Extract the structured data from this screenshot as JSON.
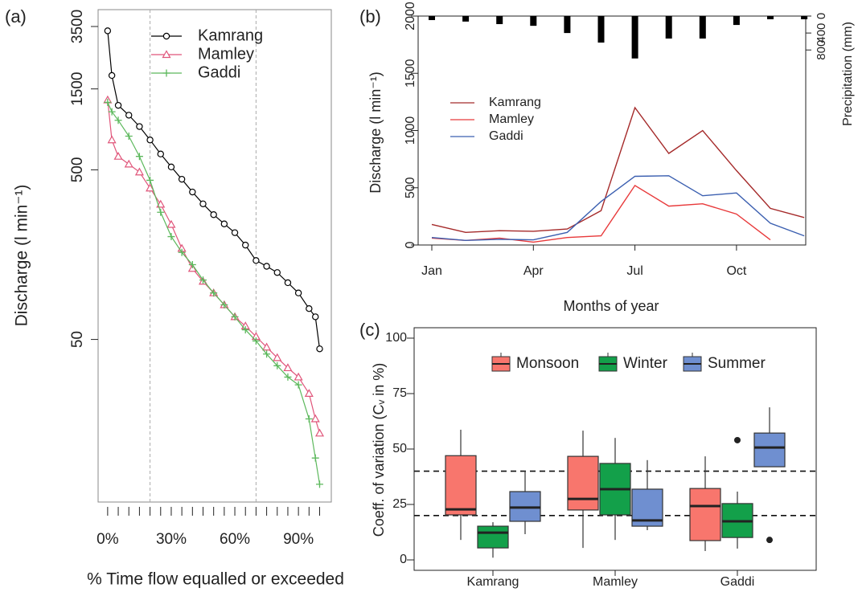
{
  "chart_data": [
    {
      "type": "line",
      "panel_label": "(a)",
      "xlabel": "% Time flow equalled or exceeded",
      "ylabel": "Discharge (l min⁻¹)",
      "ylog": true,
      "ylim": [
        5.5,
        4400
      ],
      "yticks": [
        50,
        500,
        1500,
        3500
      ],
      "xlim": [
        -4.5,
        105.5
      ],
      "xticks": [
        {
          "value": 0,
          "label": "0%"
        },
        {
          "value": 30,
          "label": "30%"
        },
        {
          "value": 60,
          "label": "60%"
        },
        {
          "value": 90,
          "label": "90%"
        }
      ],
      "xminorticks": [
        0,
        5,
        10,
        15,
        20,
        25,
        30,
        35,
        40,
        45,
        50,
        55,
        60,
        65,
        70,
        75,
        80,
        85,
        90,
        95,
        100
      ],
      "vlines": [
        20,
        70
      ],
      "x": [
        0,
        2,
        5,
        10,
        15,
        20,
        25,
        30,
        35,
        40,
        45,
        50,
        55,
        60,
        65,
        70,
        75,
        80,
        85,
        90,
        95,
        98,
        100
      ],
      "series": [
        {
          "name": "Kamrang",
          "color": "#000000",
          "marker": "circle",
          "values": [
            3300,
            1800,
            1200,
            1050,
            900,
            750,
            620,
            520,
            440,
            370,
            315,
            272,
            240,
            213,
            180,
            146,
            135,
            124,
            108,
            94,
            76,
            68,
            44
          ]
        },
        {
          "name": "Mamley",
          "color": "#e0557a",
          "marker": "triangle",
          "values": [
            1290,
            750,
            600,
            540,
            485,
            390,
            313,
            238,
            172,
            131,
            110,
            94,
            80,
            68,
            60,
            52,
            45,
            39,
            34,
            30,
            24,
            17,
            14
          ]
        },
        {
          "name": "Gaddi",
          "color": "#5cb85c",
          "marker": "plus",
          "values": [
            1250,
            1100,
            980,
            790,
            600,
            434,
            281,
            202,
            163,
            138,
            112,
            94,
            80,
            68,
            57,
            49,
            41,
            35,
            30,
            27,
            17,
            10,
            7
          ]
        }
      ]
    },
    {
      "type": "line",
      "panel_label": "(b)",
      "xlabel": "Months of year",
      "ylabel": "Discharge (l min⁻¹)",
      "y2label": "Precipitation (mm)",
      "ylim": [
        0,
        2000
      ],
      "yticks": [
        0,
        500,
        1000,
        1500,
        2000
      ],
      "y2lim": [
        0,
        5400
      ],
      "y2ticks": [
        0,
        400,
        800
      ],
      "categories": [
        "Jan",
        null,
        null,
        "Apr",
        null,
        null,
        "Jul",
        null,
        null,
        "Oct",
        null,
        null
      ],
      "series": [
        {
          "name": "Kamrang",
          "color": "#a52a2a",
          "values": [
            180,
            110,
            125,
            120,
            140,
            300,
            1200,
            800,
            1000,
            650,
            320,
            240
          ]
        },
        {
          "name": "Mamley",
          "color": "#e8393a",
          "values": [
            60,
            40,
            60,
            25,
            65,
            80,
            520,
            340,
            360,
            270,
            45,
            null
          ]
        },
        {
          "name": "Gaddi",
          "color": "#3b5fb0",
          "values": [
            65,
            40,
            50,
            45,
            110,
            380,
            600,
            605,
            430,
            455,
            190,
            80
          ]
        }
      ],
      "precipitation": {
        "axis": "y2",
        "color": "#000000",
        "values": [
          95,
          130,
          190,
          230,
          400,
          625,
          1000,
          530,
          530,
          210,
          75,
          75
        ]
      }
    },
    {
      "type": "box",
      "panel_label": "(c)",
      "ylabel": "Coeff. of variation (Cᵥ in %)",
      "ylim": [
        -4.7,
        104.7
      ],
      "yticks": [
        0,
        25,
        50,
        75,
        100
      ],
      "hlines": [
        20,
        40
      ],
      "categories": [
        "Kamrang",
        "Mamley",
        "Gaddi"
      ],
      "series": [
        {
          "name": "Monsoon",
          "color": "#f8766d",
          "values": [
            [
              9,
              20.3,
              22.8,
              47,
              58.7
            ],
            [
              5.4,
              22.5,
              27.5,
              46.7,
              58.3
            ],
            [
              4,
              8.7,
              24.3,
              32.2,
              46.7
            ]
          ],
          "outliers": [
            [],
            [],
            []
          ]
        },
        {
          "name": "Winter",
          "color": "#13a04a",
          "values": [
            [
              1,
              5.4,
              12.3,
              15.2,
              17
            ],
            [
              9,
              20.3,
              31.9,
              43.5,
              55
            ],
            [
              5.1,
              10.1,
              17.4,
              25.4,
              30.8
            ]
          ],
          "outliers": [
            [],
            [],
            [
              54
            ]
          ]
        },
        {
          "name": "Summer",
          "color": "#6f8fd0",
          "values": [
            [
              11.6,
              17.4,
              23.6,
              30.8,
              40.2
            ],
            [
              13.4,
              15.2,
              17.8,
              31.9,
              45
            ],
            [
              42,
              42,
              50.7,
              57.2,
              68.8
            ]
          ],
          "outliers": [
            [],
            [],
            [
              9
            ]
          ]
        }
      ]
    }
  ]
}
